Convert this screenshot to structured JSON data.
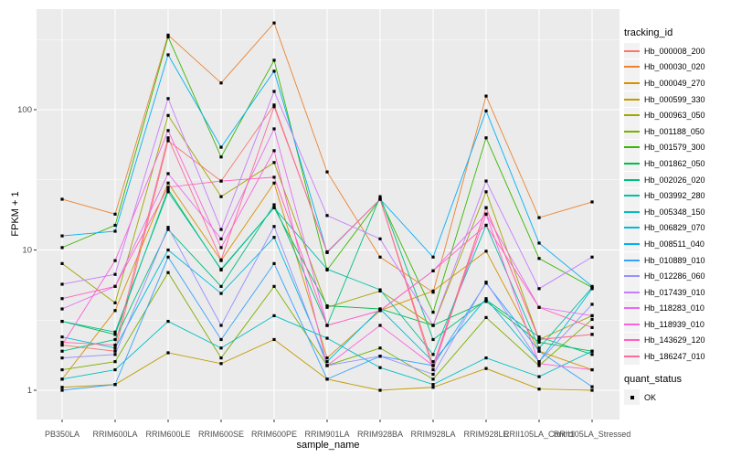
{
  "chart_data": {
    "type": "line",
    "title": "",
    "xlabel": "sample_name",
    "ylabel": "FPKM + 1",
    "yscale": "log10",
    "grid": true,
    "legend_position": "right",
    "yticks": [
      1,
      10,
      100
    ],
    "ylim": [
      0.62,
      520
    ],
    "categories": [
      "PB350LA",
      "RRIM600LA",
      "RRIM600LE",
      "RRIM600SE",
      "RRIM600PE",
      "RRIM901LA",
      "RRIM928BA",
      "RRIM928LA",
      "RRIM928LE",
      "RRII105LA_Control",
      "RRII105LA_Stressed"
    ],
    "legend": {
      "title": "tracking_id"
    },
    "quant_legend": {
      "title": "quant_status",
      "items": [
        {
          "label": "OK",
          "marker": "black-square"
        }
      ]
    },
    "style": {
      "panel_bg": "#EBEBEB",
      "grid_color": "#FFFFFF",
      "axis_text_color": "#4D4D4D",
      "tick_color": "#333333",
      "point_color": "#000000",
      "key_bg": "#F2F2F2"
    },
    "series": [
      {
        "name": "Hb_000008_200",
        "color": "#F8766D",
        "values": [
          2.1,
          1.9,
          60,
          31,
          108,
          9.6,
          23,
          1.5,
          20,
          2.3,
          2.5
        ]
      },
      {
        "name": "Hb_000030_020",
        "color": "#EA8331",
        "values": [
          23,
          18,
          340,
          155,
          415,
          36,
          8.9,
          5.0,
          125,
          17,
          22
        ]
      },
      {
        "name": "Hb_000049_270",
        "color": "#D89000",
        "values": [
          1.2,
          3.7,
          30,
          8.4,
          30,
          1.7,
          3.7,
          5.1,
          9.8,
          1.9,
          1.4
        ]
      },
      {
        "name": "Hb_000599_330",
        "color": "#C09B00",
        "values": [
          1.05,
          1.1,
          1.85,
          1.55,
          2.3,
          1.2,
          1.0,
          1.05,
          1.43,
          1.02,
          1.0
        ]
      },
      {
        "name": "Hb_000963_050",
        "color": "#A3A500",
        "values": [
          8.0,
          4.2,
          91,
          24,
          42,
          3.9,
          5.1,
          2.9,
          26,
          2.3,
          3.4
        ]
      },
      {
        "name": "Hb_001188_050",
        "color": "#7CAE00",
        "values": [
          1.4,
          1.6,
          6.9,
          1.7,
          5.5,
          1.5,
          2.0,
          1.2,
          3.3,
          1.5,
          3.2
        ]
      },
      {
        "name": "Hb_001579_300",
        "color": "#39B600",
        "values": [
          10.4,
          15,
          330,
          46,
          225,
          7.2,
          23,
          3.6,
          63,
          8.7,
          5.4
        ]
      },
      {
        "name": "Hb_001862_050",
        "color": "#00BB4E",
        "values": [
          3.1,
          2.5,
          27,
          7.2,
          20,
          4.0,
          3.8,
          2.9,
          4.3,
          2.2,
          1.9
        ]
      },
      {
        "name": "Hb_002026_020",
        "color": "#00BF7D",
        "values": [
          1.9,
          2.3,
          14,
          5.5,
          21,
          2.9,
          24,
          2.3,
          4.4,
          2.4,
          1.8
        ]
      },
      {
        "name": "Hb_003992_280",
        "color": "#00C1A3",
        "values": [
          3.1,
          2.6,
          26,
          7.3,
          20,
          7.3,
          5.2,
          1.8,
          15,
          2.0,
          5.4
        ]
      },
      {
        "name": "Hb_005348_150",
        "color": "#00BFC4",
        "values": [
          1.2,
          1.4,
          3.1,
          2.0,
          3.4,
          2.35,
          1.45,
          1.1,
          1.7,
          1.25,
          1.9
        ]
      },
      {
        "name": "Hb_006829_070",
        "color": "#00BAE0",
        "values": [
          2.4,
          2.0,
          10,
          4.9,
          12.3,
          1.6,
          3.8,
          1.6,
          4.5,
          1.6,
          5.3
        ]
      },
      {
        "name": "Hb_008511_040",
        "color": "#00B0F6",
        "values": [
          12.6,
          13.6,
          246,
          54,
          188,
          9.6,
          23,
          8.9,
          98,
          11.2,
          5.5
        ]
      },
      {
        "name": "Hb_010889_010",
        "color": "#35A2FF",
        "values": [
          1.0,
          1.1,
          8.9,
          2.3,
          8.0,
          1.2,
          1.75,
          1.5,
          5.8,
          1.9,
          1.06
        ]
      },
      {
        "name": "Hb_012286_060",
        "color": "#9590FF",
        "values": [
          1.7,
          1.8,
          14.5,
          2.9,
          14.7,
          1.5,
          1.75,
          1.3,
          5.9,
          1.6,
          4.1
        ]
      },
      {
        "name": "Hb_017439_010",
        "color": "#C77CFF",
        "values": [
          5.7,
          6.7,
          120,
          14,
          135,
          17.6,
          12,
          2.9,
          31,
          5.3,
          8.9
        ]
      },
      {
        "name": "Hb_118283_010",
        "color": "#E76BF3",
        "values": [
          3.8,
          5.5,
          35,
          12,
          73,
          2.9,
          3.7,
          7.1,
          18,
          3.9,
          3.4
        ]
      },
      {
        "name": "Hb_118939_010",
        "color": "#FA62DB",
        "values": [
          2.1,
          8.4,
          71,
          10.4,
          51,
          1.5,
          2.9,
          1.5,
          18,
          1.55,
          1.4
        ]
      },
      {
        "name": "Hb_143629_120",
        "color": "#FF62BC",
        "values": [
          4.5,
          5.5,
          28,
          31,
          33,
          2.9,
          3.7,
          7.1,
          15,
          3.9,
          2.8
        ]
      },
      {
        "name": "Hb_186247_010",
        "color": "#FF6A98",
        "values": [
          2.2,
          2.1,
          63,
          8.5,
          105,
          9.7,
          23,
          1.4,
          20,
          2.3,
          2.5
        ]
      }
    ]
  }
}
